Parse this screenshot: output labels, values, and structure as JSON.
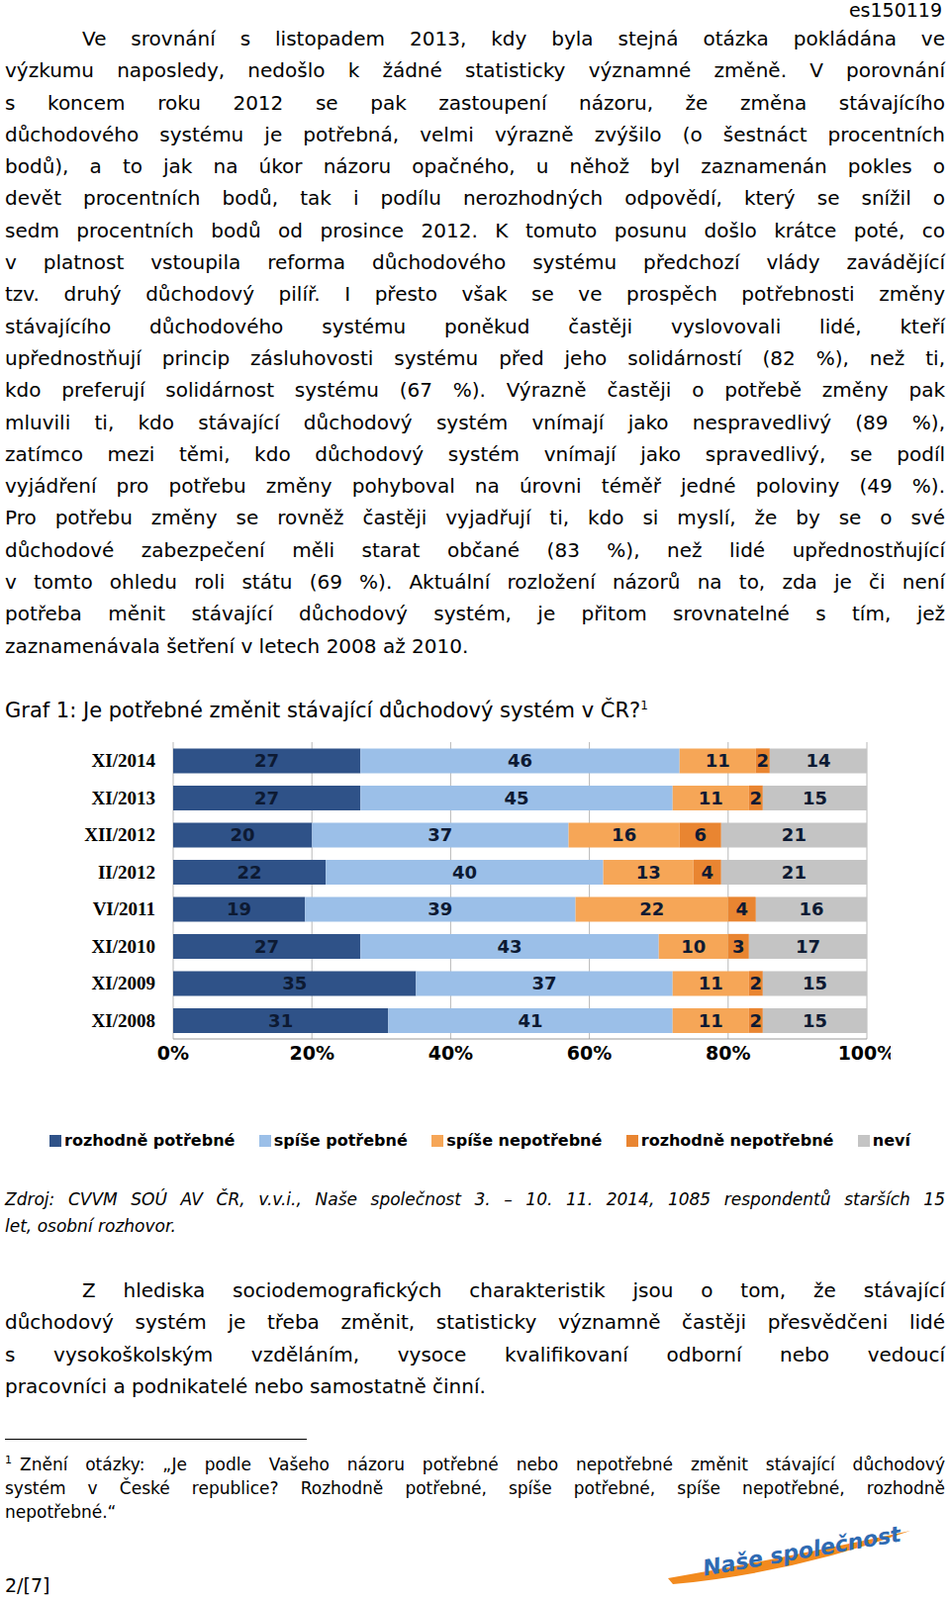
{
  "header": "es150119",
  "paragraph_1": [
    "Ve srovnání s listopadem 2013, kdy byla stejná otázka pokládána ve",
    "výzkumu naposledy, nedošlo k žádné statisticky významné změně. V porovnání",
    "s koncem roku 2012 se pak zastoupení názoru, že změna stávajícího",
    "důchodového systému je potřebná, velmi výrazně zvýšilo (o šestnáct procentních",
    "bodů), a to jak na úkor názoru opačného, u něhož byl zaznamenán pokles o",
    "devět procentních bodů, tak i podílu nerozhodných odpovědí, který se snížil o",
    "sedm procentních bodů od prosince 2012. K tomuto posunu došlo krátce poté, co",
    "v platnost vstoupila reforma důchodového systému předchozí vlády zavádějící",
    "tzv. druhý důchodový pilíř. I přesto však se ve prospěch potřebnosti změny",
    "stávajícího důchodového systému poněkud častěji vyslovovali lidé, kteří",
    "upřednostňují princip zásluhovosti systému před jeho solidárností (82 %), než ti,",
    "kdo preferují solidárnost systému (67 %). Výrazně častěji o potřebě změny pak",
    "mluvili ti, kdo stávající důchodový systém vnímají jako nespravedlivý (89 %),",
    "zatímco mezi těmi, kdo důchodový systém vnímají jako spravedlivý, se podíl",
    "vyjádření pro potřebu změny pohyboval na úrovni téměř jedné poloviny (49 %).",
    "Pro potřebu změny se rovněž častěji vyjadřují ti, kdo si myslí, že by se o své",
    "důchodové zabezpečení měli starat občané (83 %), než lidé upřednostňující",
    "v tomto ohledu roli státu (69 %). Aktuální rozložení názorů na to, zda je či není",
    "potřeba měnit stávající důchodový systém, je přitom srovnatelné s tím, jež",
    "zaznamenávala šetření v letech 2008 až 2010."
  ],
  "graph_title_note": "1",
  "chart_data": {
    "type": "bar",
    "orientation": "horizontal",
    "stacked": true,
    "data_labels": true,
    "grid": true,
    "legend": "bottom",
    "title": "Graf 1: Je potřebné změnit stávající důchodový systém v ČR?",
    "categories": [
      "XI/2014",
      "XI/2013",
      "XII/2012",
      "II/2012",
      "VI/2011",
      "XI/2010",
      "XI/2009",
      "XI/2008"
    ],
    "series": [
      {
        "name": "rozhodně potřebné",
        "color": "#2f5288",
        "values": [
          27,
          27,
          20,
          22,
          19,
          27,
          35,
          31
        ]
      },
      {
        "name": "spíše potřebné",
        "color": "#9bbfe8",
        "values": [
          46,
          45,
          37,
          40,
          39,
          43,
          37,
          41
        ]
      },
      {
        "name": "spíše nepotřebné",
        "color": "#f6a657",
        "values": [
          11,
          11,
          16,
          13,
          22,
          10,
          11,
          11
        ]
      },
      {
        "name": "rozhodně nepotřebné",
        "color": "#e98531",
        "values": [
          2,
          2,
          6,
          4,
          4,
          3,
          2,
          2
        ]
      },
      {
        "name": "neví",
        "color": "#c4c4c4",
        "values": [
          14,
          15,
          21,
          21,
          16,
          17,
          15,
          15
        ]
      }
    ],
    "xlim": [
      0,
      100
    ],
    "xticks": [
      {
        "value": 0,
        "label": "0%"
      },
      {
        "value": 20,
        "label": "20%"
      },
      {
        "value": 40,
        "label": "40%"
      },
      {
        "value": 60,
        "label": "60%"
      },
      {
        "value": 80,
        "label": "80%"
      },
      {
        "value": 100,
        "label": "100%"
      }
    ]
  },
  "source": [
    "Zdroj: CVVM SOÚ AV ČR, v.v.i., Naše společnost 3. – 10. 11. 2014, 1085 respondentů starších 15",
    "let, osobní rozhovor."
  ],
  "paragraph_2": [
    "Z hlediska sociodemografických charakteristik jsou o tom, že stávající",
    "důchodový systém je třeba změnit, statisticky významně častěji přesvědčeni lidé",
    "s vysokoškolským vzděláním, vysoce kvalifikovaní odborní nebo vedoucí",
    "pracovníci a podnikatelé nebo samostatně činní."
  ],
  "footnote": {
    "marker": "1",
    "lines": [
      "Znění otázky: „Je podle Vašeho názoru potřebné nebo nepotřebné změnit stávající důchodový",
      "systém v České republice? Rozhodně potřebné, spíše potřebné, spíše nepotřebné, rozhodně",
      "nepotřebné.“"
    ]
  },
  "logo": "Naše společnost",
  "page": "2/[7]"
}
